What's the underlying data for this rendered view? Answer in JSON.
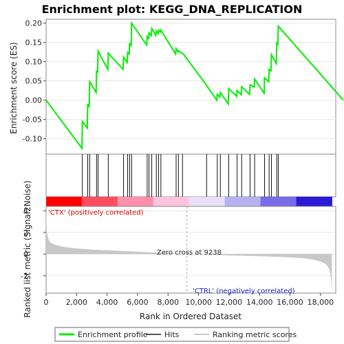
{
  "chart_data": {
    "title": "Enrichment plot: KEGG_DNA_REPLICATION",
    "type": "line",
    "top_panel": {
      "ylabel": "Enrichment score (ES)",
      "ylim": [
        -0.14,
        0.21
      ],
      "yticks": [
        -0.1,
        -0.05,
        0.0,
        0.05,
        0.1,
        0.15,
        0.2
      ],
      "ytick_labels": [
        "-0.10",
        "-0.05",
        "0.00",
        "0.05",
        "0.10",
        "0.15",
        "0.20"
      ],
      "series": [
        {
          "name": "Enrichment profile",
          "color": "#00ee00",
          "x": [
            0,
            2350,
            2380,
            2700,
            2730,
            2830,
            2860,
            3280,
            3310,
            3380,
            3410,
            4050,
            4080,
            5050,
            5080,
            5320,
            5350,
            5450,
            5480,
            5580,
            5610,
            6600,
            6630,
            6720,
            6750,
            6900,
            6930,
            7200,
            7230,
            7350,
            7380,
            7500,
            7530,
            8500,
            8530,
            8650,
            8680,
            9000,
            10500,
            10530,
            11200,
            11230,
            11400,
            11430,
            11950,
            11980,
            12500,
            12530,
            12800,
            12830,
            13350,
            13380,
            13650,
            13680,
            14300,
            14330,
            14600,
            14630,
            14750,
            14780,
            15100,
            15130,
            15200,
            15230,
            19500
          ],
          "y": [
            0.0,
            -0.125,
            -0.055,
            -0.072,
            -0.01,
            -0.018,
            0.048,
            0.02,
            0.075,
            0.073,
            0.127,
            0.08,
            0.122,
            0.08,
            0.112,
            0.098,
            0.124,
            0.12,
            0.146,
            0.142,
            0.2,
            0.143,
            0.165,
            0.16,
            0.175,
            0.168,
            0.186,
            0.168,
            0.18,
            0.173,
            0.182,
            0.177,
            0.182,
            0.12,
            0.134,
            0.125,
            0.128,
            0.12,
            0.04,
            0.038,
            0.0,
            0.015,
            0.008,
            0.02,
            -0.01,
            0.03,
            0.01,
            0.025,
            0.014,
            0.035,
            0.015,
            0.04,
            0.034,
            0.055,
            0.018,
            0.058,
            0.048,
            0.08,
            0.076,
            0.118,
            0.095,
            0.148,
            0.145,
            0.192,
            0.0
          ]
        }
      ]
    },
    "hits": {
      "name": "Hits",
      "positions": [
        2380,
        2730,
        2860,
        3310,
        3410,
        4080,
        5080,
        5350,
        5480,
        5610,
        6630,
        6750,
        6930,
        7230,
        7380,
        7530,
        8530,
        8680,
        8950,
        10530,
        11230,
        11430,
        11980,
        12530,
        12830,
        13380,
        13680,
        14330,
        14630,
        14780,
        15130,
        15230
      ]
    },
    "ranking_bar": {
      "colors": [
        "#ff0000",
        "#ff4d5e",
        "#ff8faa",
        "#ffc3dc",
        "#e8e0f8",
        "#b8b0f0",
        "#7a6be8",
        "#2a1ad8"
      ],
      "positive_label": "'CTX' (positively correlated)",
      "negative_label": "'CTRL' (negatively correlated)"
    },
    "bottom_panel": {
      "ylabel": "Ranked list metric (Signal2Noise)",
      "ylim": [
        -3.6,
        4.4
      ],
      "yticks": [
        -2,
        0,
        2,
        4
      ],
      "ytick_labels": [
        "-2",
        "0",
        "2",
        "4"
      ],
      "series": [
        {
          "name": "Ranking metric scores",
          "color": "#c8c8c8",
          "x": [
            0,
            50,
            150,
            300,
            600,
            1000,
            1500,
            2000,
            3000,
            4000,
            5000,
            6000,
            7000,
            8000,
            9238,
            10000,
            11000,
            12000,
            13000,
            14000,
            15000,
            16000,
            17000,
            17500,
            17900,
            18200,
            18400,
            18550,
            18650,
            18700,
            18749
          ],
          "y": [
            4.1,
            2.0,
            1.4,
            1.05,
            0.85,
            0.7,
            0.6,
            0.52,
            0.42,
            0.35,
            0.28,
            0.22,
            0.15,
            0.08,
            0.0,
            -0.04,
            -0.08,
            -0.12,
            -0.16,
            -0.2,
            -0.24,
            -0.3,
            -0.4,
            -0.5,
            -0.65,
            -0.8,
            -1.0,
            -1.3,
            -1.8,
            -2.5,
            -3.5
          ]
        }
      ],
      "zero_cross_label": "Zero cross at 9238",
      "zero_cross": 9238
    },
    "xlabel": "Rank in Ordered Dataset",
    "xlim": [
      0,
      19000
    ],
    "xticks": [
      0,
      2000,
      4000,
      6000,
      8000,
      10000,
      12000,
      14000,
      16000,
      18000
    ],
    "xtick_labels": [
      "0",
      "2,000",
      "4,000",
      "6,000",
      "8,000",
      "10,000",
      "12,000",
      "14,000",
      "16,000",
      "18,000"
    ],
    "legend": {
      "placement": "bottom",
      "entries": [
        {
          "label": "Enrichment profile",
          "color": "#00ee00"
        },
        {
          "label": "Hits",
          "color": "#555555"
        },
        {
          "label": "Ranking metric scores",
          "color": "#c8c8c8"
        }
      ]
    }
  }
}
